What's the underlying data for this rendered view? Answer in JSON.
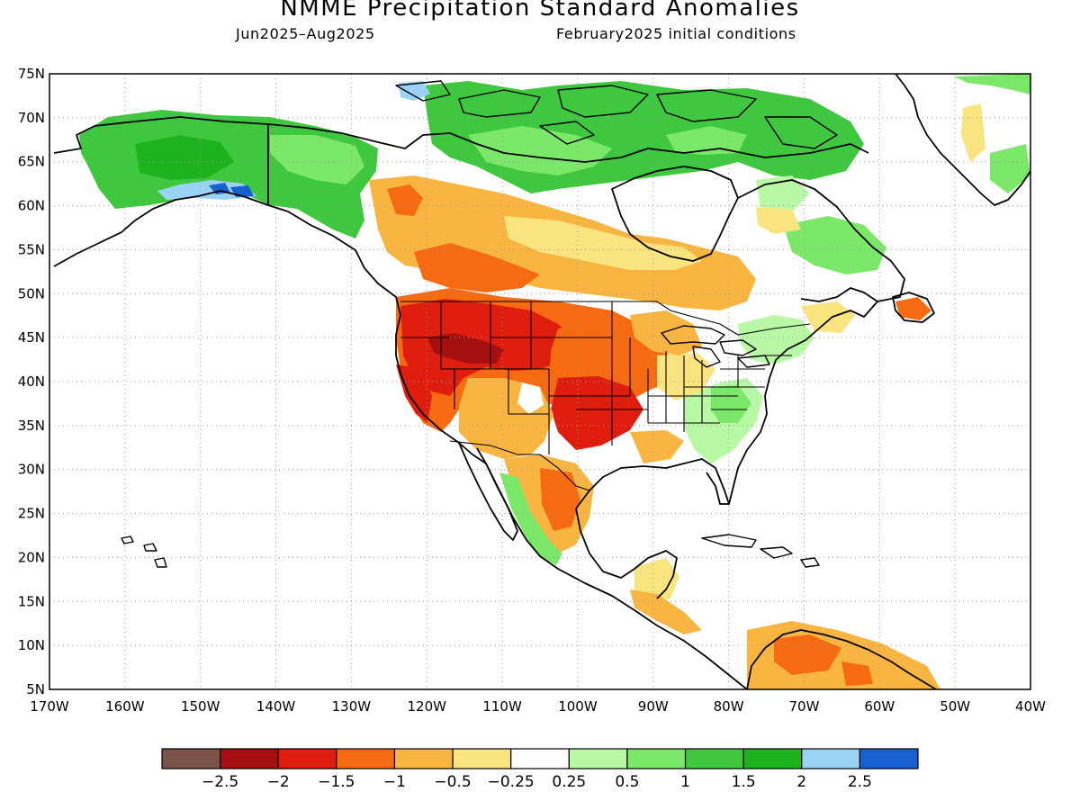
{
  "header": {
    "title": "NMME Precipitation Standard Anomalies",
    "season": "Jun2025–Aug2025",
    "init": "February2025 initial conditions"
  },
  "map": {
    "projection": "cylindrical-equidistant",
    "lon_range": [
      -170,
      -40
    ],
    "lat_range": [
      5,
      75
    ],
    "gridlines": "dotted",
    "lat_labels": [
      "5N",
      "10N",
      "15N",
      "20N",
      "25N",
      "30N",
      "35N",
      "40N",
      "45N",
      "50N",
      "55N",
      "60N",
      "65N",
      "70N",
      "75N"
    ],
    "lon_labels": [
      "170W",
      "160W",
      "150W",
      "140W",
      "130W",
      "120W",
      "110W",
      "100W",
      "90W",
      "80W",
      "70W",
      "60W",
      "50W",
      "40W"
    ]
  },
  "legend": {
    "labels": [
      "−2.5",
      "−2",
      "−1.5",
      "−1",
      "−0.5",
      "−0.25",
      "0.25",
      "0.5",
      "1",
      "1.5",
      "2",
      "2.5"
    ],
    "colors": [
      "#7a5248",
      "#a50f0f",
      "#de1d0e",
      "#f66a11",
      "#f8b541",
      "#fae480",
      "#ffffff",
      "#b9f8a5",
      "#7ce86a",
      "#3fc83f",
      "#1eb31e",
      "#9bd3f7",
      "#1660d2"
    ]
  },
  "anomaly_regions": [
    {
      "area": "Alaska",
      "category": "1 to 1.5"
    },
    {
      "area": "southern Alaska coast",
      "category": "2 to 2.5"
    },
    {
      "area": "Canadian Arctic Archipelago",
      "category": "1 to 1.5"
    },
    {
      "area": "western Canada",
      "category": "-1 to -0.5"
    },
    {
      "area": "Pacific Northwest and northern Rockies",
      "category": "-2 to -1.5"
    },
    {
      "area": "Great Plains",
      "category": "-1.5 to -1"
    },
    {
      "area": "southern Plains",
      "category": "-2 to -1.5"
    },
    {
      "area": "Southeast U.S.",
      "category": "0.25 to 0.5"
    },
    {
      "area": "northern Mexico",
      "category": "-1 to -0.5"
    },
    {
      "area": "Central America",
      "category": "-0.5 to -0.25"
    },
    {
      "area": "northern South America",
      "category": "-1 to -0.5"
    },
    {
      "area": "Greenland east coast",
      "category": "0.5 to 1"
    }
  ]
}
